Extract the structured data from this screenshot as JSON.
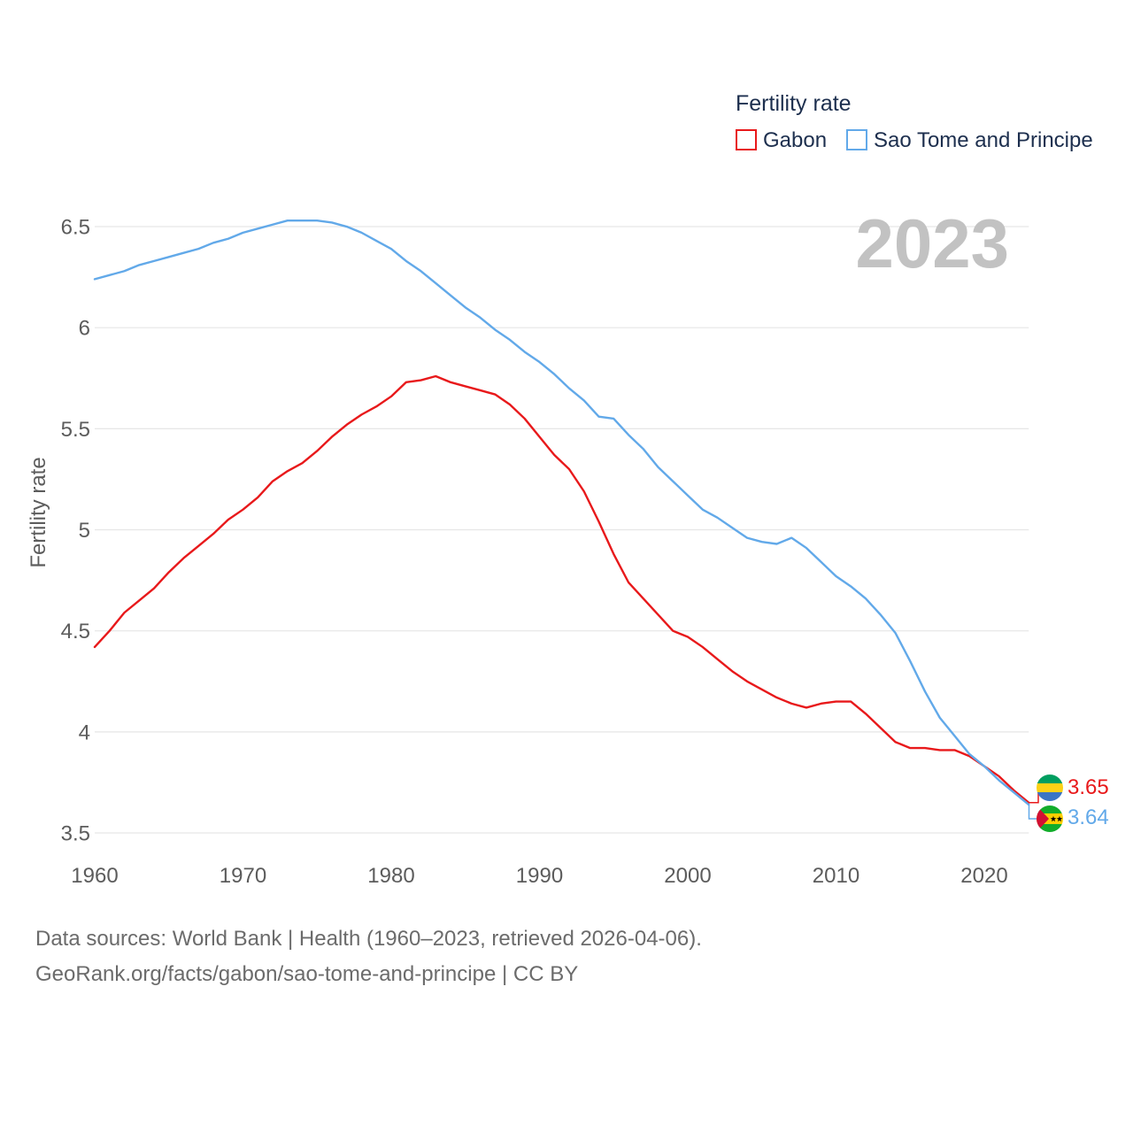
{
  "chart_data": {
    "type": "line",
    "legend_title": "Fertility rate",
    "ylabel": "Fertility rate",
    "year_label": "2023",
    "legend_position": "top-right",
    "grid": true,
    "xlim": [
      1960,
      2023
    ],
    "ylim": [
      3.5,
      6.6
    ],
    "x_ticks": [
      1960,
      1970,
      1980,
      1990,
      2000,
      2010,
      2020
    ],
    "y_ticks": [
      6.5,
      6,
      5.5,
      5,
      4.5,
      4,
      3.5
    ],
    "x": [
      1960,
      1961,
      1962,
      1963,
      1964,
      1965,
      1966,
      1967,
      1968,
      1969,
      1970,
      1971,
      1972,
      1973,
      1974,
      1975,
      1976,
      1977,
      1978,
      1979,
      1980,
      1981,
      1982,
      1983,
      1984,
      1985,
      1986,
      1987,
      1988,
      1989,
      1990,
      1991,
      1992,
      1993,
      1994,
      1995,
      1996,
      1997,
      1998,
      1999,
      2000,
      2001,
      2002,
      2003,
      2004,
      2005,
      2006,
      2007,
      2008,
      2009,
      2010,
      2011,
      2012,
      2013,
      2014,
      2015,
      2016,
      2017,
      2018,
      2019,
      2020,
      2021,
      2022,
      2023
    ],
    "series": [
      {
        "name": "Gabon",
        "color": "#e8191b",
        "flag_icon": "gabon-flag-icon",
        "end_label": "3.65",
        "values": [
          4.42,
          4.5,
          4.59,
          4.65,
          4.71,
          4.79,
          4.86,
          4.92,
          4.98,
          5.05,
          5.1,
          5.16,
          5.24,
          5.29,
          5.33,
          5.39,
          5.46,
          5.52,
          5.57,
          5.61,
          5.66,
          5.73,
          5.74,
          5.76,
          5.73,
          5.71,
          5.69,
          5.67,
          5.62,
          5.55,
          5.46,
          5.37,
          5.3,
          5.19,
          5.04,
          4.88,
          4.74,
          4.66,
          4.58,
          4.5,
          4.47,
          4.42,
          4.36,
          4.3,
          4.25,
          4.21,
          4.17,
          4.14,
          4.12,
          4.14,
          4.15,
          4.15,
          4.09,
          4.02,
          3.95,
          3.92,
          3.92,
          3.91,
          3.91,
          3.88,
          3.83,
          3.78,
          3.71,
          3.65
        ]
      },
      {
        "name": "Sao Tome and Principe",
        "color": "#62a9e9",
        "flag_icon": "sao-tome-and-principe-flag-icon",
        "end_label": "3.64",
        "values": [
          6.24,
          6.26,
          6.28,
          6.31,
          6.33,
          6.35,
          6.37,
          6.39,
          6.42,
          6.44,
          6.47,
          6.49,
          6.51,
          6.53,
          6.53,
          6.53,
          6.52,
          6.5,
          6.47,
          6.43,
          6.39,
          6.33,
          6.28,
          6.22,
          6.16,
          6.1,
          6.05,
          5.99,
          5.94,
          5.88,
          5.83,
          5.77,
          5.7,
          5.64,
          5.56,
          5.55,
          5.47,
          5.4,
          5.31,
          5.24,
          5.17,
          5.1,
          5.06,
          5.01,
          4.96,
          4.94,
          4.93,
          4.96,
          4.91,
          4.84,
          4.77,
          4.72,
          4.66,
          4.58,
          4.49,
          4.35,
          4.2,
          4.07,
          3.98,
          3.89,
          3.83,
          3.76,
          3.7,
          3.64
        ]
      }
    ]
  },
  "footer": {
    "source": "Data sources: World Bank | Health (1960–2023, retrieved 2026-04-06).",
    "attribution": "GeoRank.org/facts/gabon/sao-tome-and-principe | CC BY"
  }
}
